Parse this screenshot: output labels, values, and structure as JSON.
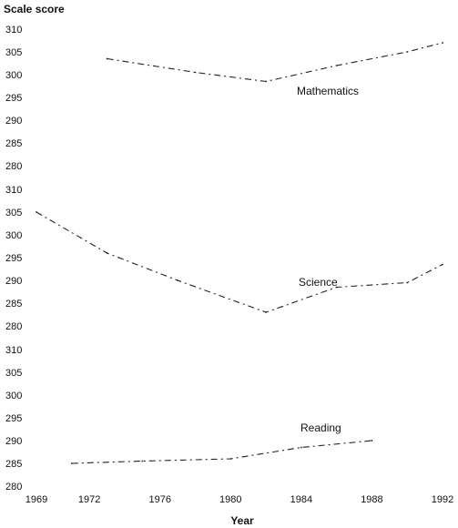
{
  "chart_data": {
    "type": "line",
    "ylabel": "Scale score",
    "xlabel": "Year",
    "x_ticks": [
      "1969",
      "1972",
      "1976",
      "1980",
      "1984",
      "1988",
      "1992"
    ],
    "xlim": [
      1969,
      1992
    ],
    "grid": false,
    "legend": "none",
    "line_style": "dash-dot",
    "line_color": "#222222",
    "panels": [
      {
        "y_ticks": [
          "310",
          "305",
          "300",
          "295",
          "290",
          "285",
          "280"
        ],
        "ylim": [
          280,
          310
        ],
        "series": [
          {
            "name": "Mathematics",
            "x": [
              1973,
              1978,
              1982,
              1986,
              1990,
              1992
            ],
            "y": [
              303.5,
              300.5,
              298.5,
              302,
              305,
              307
            ]
          }
        ]
      },
      {
        "y_ticks": [
          "310",
          "305",
          "300",
          "295",
          "290",
          "285",
          "280"
        ],
        "ylim": [
          280,
          310
        ],
        "series": [
          {
            "name": "Science",
            "x": [
              1969,
              1973,
              1977,
              1982,
              1986,
              1990,
              1992
            ],
            "y": [
              305,
              296,
              290,
              283,
              288.5,
              289.5,
              293.5
            ]
          }
        ]
      },
      {
        "y_ticks": [
          "310",
          "305",
          "300",
          "295",
          "290",
          "285",
          "280"
        ],
        "ylim": [
          280,
          310
        ],
        "series": [
          {
            "name": "Reading",
            "x": [
              1971,
              1975,
              1980,
              1984,
              1988
            ],
            "y": [
              285,
              285.5,
              286,
              288.5,
              290
            ]
          }
        ]
      }
    ]
  }
}
